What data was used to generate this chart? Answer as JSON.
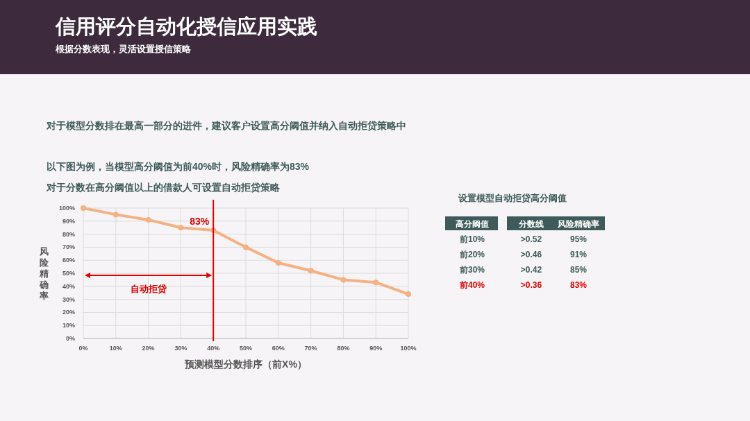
{
  "chart_data": [
    {
      "type": "line",
      "title": "信用评分自动化授信应用实践",
      "subtitle": "根据分数表现，灵活设置授信策略",
      "xlabel": "预测模型分数排序（前X%）",
      "ylabel": "风险精确率",
      "x": [
        0,
        10,
        20,
        30,
        40,
        50,
        60,
        70,
        80,
        90,
        100
      ],
      "series": [
        {
          "color": "#f4b183",
          "values": [
            100,
            95,
            91,
            85,
            83,
            70,
            58,
            52,
            45,
            43,
            34
          ]
        }
      ],
      "xlim": [
        0,
        100
      ],
      "ylim": [
        0,
        100
      ],
      "xticks": [
        {
          "value": 0,
          "label": "0%"
        },
        {
          "value": 10,
          "label": "10%"
        },
        {
          "value": 20,
          "label": "20%"
        },
        {
          "value": 30,
          "label": "30%"
        },
        {
          "value": 40,
          "label": "40%"
        },
        {
          "value": 50,
          "label": "50%"
        },
        {
          "value": 60,
          "label": "60%"
        },
        {
          "value": 70,
          "label": "70%"
        },
        {
          "value": 80,
          "label": "80%"
        },
        {
          "value": 90,
          "label": "90%"
        },
        {
          "value": 100,
          "label": "100%"
        }
      ],
      "yticks": [
        {
          "value": 0,
          "label": "0%"
        },
        {
          "value": 10,
          "label": "10%"
        },
        {
          "value": 20,
          "label": "20%"
        },
        {
          "value": 30,
          "label": "30%"
        },
        {
          "value": 40,
          "label": "40%"
        },
        {
          "value": 50,
          "label": "50%"
        },
        {
          "value": 60,
          "label": "60%"
        },
        {
          "value": 70,
          "label": "70%"
        },
        {
          "value": 80,
          "label": "80%"
        },
        {
          "value": 90,
          "label": "90%"
        },
        {
          "value": 100,
          "label": "100%"
        }
      ],
      "grid": true,
      "marker": "circle",
      "line_style": "solid",
      "ref_lines": [
        {
          "axis": "x",
          "value": 40,
          "color": "#e00000"
        }
      ],
      "annotations": [
        "对于模型分数排在最高一部分的进件，建议客户设置高分阈值并纳入自动拒贷策略中",
        "以下图为例，当模型高分阈值为前40%时，风险精确率为83%",
        "对于分数在高分阈值以上的借款人可设置自动拒贷策略",
        {
          "text": "83%",
          "x": 40,
          "y": 83
        },
        "自动拒贷"
      ]
    },
    {
      "type": "other",
      "title": "设置模型自动拒贷高分阈值",
      "annotations": [
        "高分阈值",
        "分数线",
        "风险精确率",
        "前10%",
        ">0.52",
        "95%",
        "前20%",
        ">0.46",
        "91%",
        "前30%",
        ">0.42",
        "85%",
        "前40%",
        ">0.36",
        "83%"
      ]
    }
  ]
}
